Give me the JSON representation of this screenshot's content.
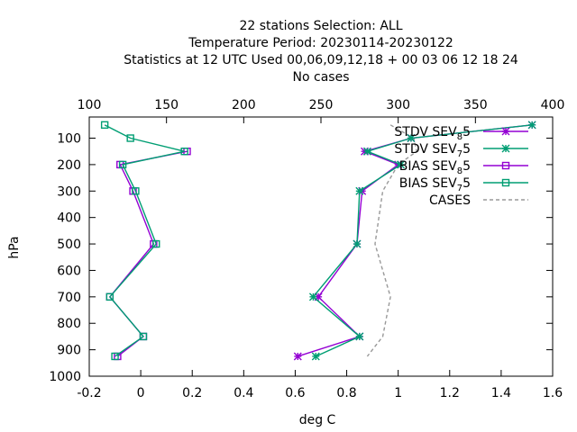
{
  "chart_data": {
    "type": "line",
    "title_lines": [
      "22 stations Selection: ALL",
      "Temperature  Period: 20230114-20230122",
      "Statistics at 12 UTC  Used  00,06,09,12,18  + 00 03 06 12 18 24",
      "No cases"
    ],
    "xlabel": "deg C",
    "ylabel": "hPa",
    "xlim": [
      -0.2,
      1.6
    ],
    "x2lim": [
      100,
      400
    ],
    "ylim": [
      1000,
      20
    ],
    "y_reversed": true,
    "x_ticks": [
      "-0.2",
      "0",
      "0.2",
      "0.4",
      "0.6",
      "0.8",
      "1",
      "1.2",
      "1.4",
      "1.6"
    ],
    "x2_ticks": [
      "100",
      "150",
      "200",
      "250",
      "300",
      "350",
      "400"
    ],
    "y_ticks": [
      "100",
      "200",
      "300",
      "400",
      "500",
      "600",
      "700",
      "800",
      "900",
      "1000"
    ],
    "legend_position": "top-right",
    "pressure_levels": [
      50,
      100,
      150,
      200,
      300,
      500,
      700,
      850,
      925
    ],
    "series": [
      {
        "name": "STDV SEV_85",
        "legend_label": "STDV SEV",
        "legend_sub": "8",
        "legend_tail": "5",
        "color": "#9400d3",
        "marker": "star",
        "values": [
          1.52,
          1.05,
          0.87,
          1.0,
          0.86,
          0.84,
          0.69,
          0.85,
          0.61
        ]
      },
      {
        "name": "STDV SEV_75",
        "legend_label": "STDV SEV",
        "legend_sub": "7",
        "legend_tail": "5",
        "color": "#009e73",
        "marker": "star",
        "values": [
          1.52,
          1.05,
          0.88,
          1.01,
          0.85,
          0.84,
          0.67,
          0.85,
          0.68
        ]
      },
      {
        "name": "BIAS SEV_85",
        "legend_label": "BIAS SEV",
        "legend_sub": "8",
        "legend_tail": "5",
        "color": "#9400d3",
        "marker": "square",
        "values": [
          null,
          null,
          0.18,
          -0.08,
          -0.03,
          0.05,
          -0.12,
          0.01,
          -0.09
        ]
      },
      {
        "name": "BIAS SEV_75",
        "legend_label": "BIAS SEV",
        "legend_sub": "7",
        "legend_tail": "5",
        "color": "#009e73",
        "marker": "square",
        "values": [
          -0.14,
          -0.04,
          0.17,
          -0.07,
          -0.02,
          0.06,
          -0.12,
          0.01,
          -0.1
        ]
      },
      {
        "name": "CASES",
        "legend_label": "CASES",
        "color": "#999999",
        "marker": "none",
        "dashed": true,
        "axis": "x2",
        "points": [
          [
            295,
            50
          ],
          [
            310,
            100
          ],
          [
            312,
            150
          ],
          [
            300,
            200
          ],
          [
            290,
            300
          ],
          [
            285,
            500
          ],
          [
            295,
            700
          ],
          [
            290,
            850
          ],
          [
            280,
            925
          ]
        ]
      }
    ]
  }
}
